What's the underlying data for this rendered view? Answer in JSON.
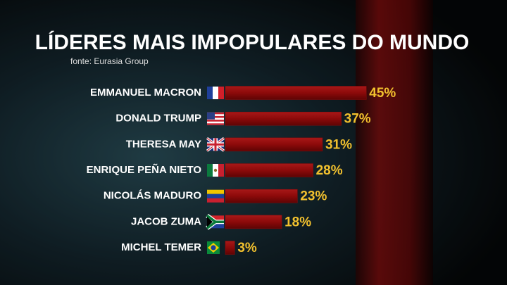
{
  "chart_data": {
    "type": "bar",
    "orientation": "horizontal",
    "title": "LÍDERES MAIS IMPOPULARES DO MUNDO",
    "subtitle": "fonte: Eurasia Group",
    "categories": [
      "EMMANUEL MACRON",
      "DONALD TRUMP",
      "THERESA MAY",
      "ENRIQUE PEÑA NIETO",
      "NICOLÁS MADURO",
      "JACOB ZUMA",
      "MICHEL TEMER"
    ],
    "values": [
      45,
      37,
      31,
      28,
      23,
      18,
      3
    ],
    "value_labels": [
      "45%",
      "37%",
      "31%",
      "28%",
      "23%",
      "18%",
      "3%"
    ],
    "color": "#8c0a0a"
  }
}
